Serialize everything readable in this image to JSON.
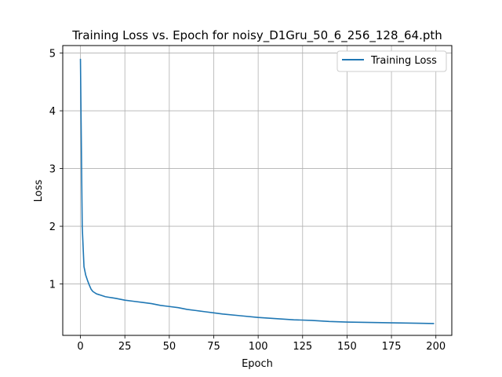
{
  "chart_data": {
    "type": "line",
    "title": "Training Loss vs. Epoch for noisy_D1Gru_50_6_256_128_64.pth",
    "xlabel": "Epoch",
    "ylabel": "Loss",
    "xlim": [
      -9.95,
      208.95
    ],
    "ylim": [
      0.11,
      5.13
    ],
    "xticks": [
      0,
      25,
      50,
      75,
      100,
      125,
      150,
      175,
      200
    ],
    "yticks": [
      1,
      2,
      3,
      4,
      5
    ],
    "grid": true,
    "legend_position": "top-right",
    "series": [
      {
        "name": "Training Loss",
        "color": "#1f77b4",
        "x": [
          0,
          1,
          2,
          3,
          4,
          5,
          6,
          7,
          8,
          9,
          10,
          12,
          14,
          16,
          18,
          20,
          25,
          30,
          35,
          40,
          45,
          50,
          55,
          60,
          65,
          70,
          75,
          80,
          90,
          100,
          110,
          120,
          130,
          140,
          150,
          160,
          170,
          180,
          190,
          199
        ],
        "y": [
          4.9,
          2.0,
          1.3,
          1.15,
          1.06,
          0.98,
          0.91,
          0.87,
          0.85,
          0.83,
          0.82,
          0.8,
          0.78,
          0.77,
          0.76,
          0.75,
          0.72,
          0.7,
          0.68,
          0.66,
          0.63,
          0.61,
          0.59,
          0.56,
          0.54,
          0.52,
          0.5,
          0.48,
          0.45,
          0.42,
          0.4,
          0.38,
          0.37,
          0.35,
          0.34,
          0.335,
          0.33,
          0.325,
          0.32,
          0.315
        ]
      }
    ]
  }
}
